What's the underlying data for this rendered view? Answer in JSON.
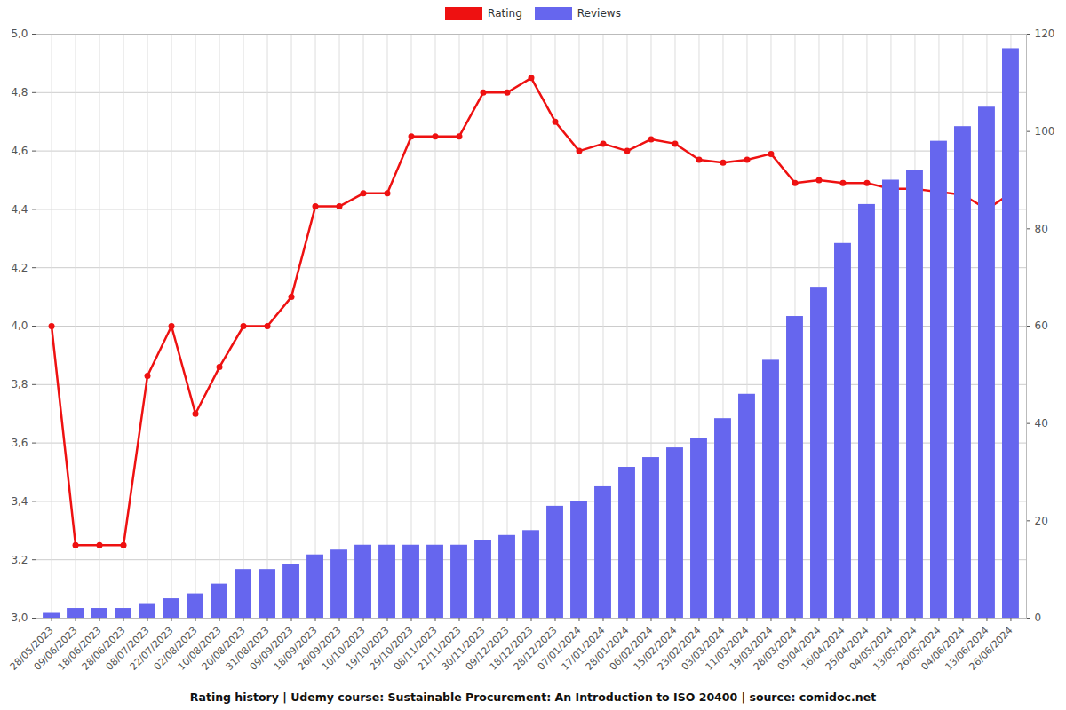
{
  "chart_data": {
    "type": "bar",
    "title": "Rating history | Udemy course: Sustainable Procurement: An Introduction to ISO 20400 | source: comidoc.net",
    "categories": [
      "28/05/2023",
      "09/06/2023",
      "18/06/2023",
      "28/06/2023",
      "08/07/2023",
      "22/07/2023",
      "02/08/2023",
      "10/08/2023",
      "20/08/2023",
      "31/08/2023",
      "09/09/2023",
      "18/09/2023",
      "26/09/2023",
      "10/10/2023",
      "19/10/2023",
      "29/10/2023",
      "08/11/2023",
      "21/11/2023",
      "30/11/2023",
      "09/12/2023",
      "18/12/2023",
      "28/12/2023",
      "07/01/2024",
      "17/01/2024",
      "28/01/2024",
      "06/02/2024",
      "15/02/2024",
      "23/02/2024",
      "03/03/2024",
      "11/03/2024",
      "19/03/2024",
      "28/03/2024",
      "05/04/2024",
      "16/04/2024",
      "25/04/2024",
      "04/05/2024",
      "13/05/2024",
      "26/05/2024",
      "04/06/2024",
      "13/06/2024",
      "26/06/2024"
    ],
    "series": [
      {
        "name": "Rating",
        "type": "line",
        "color": "#ee1111",
        "marker": "circle",
        "values": [
          4.0,
          3.25,
          3.25,
          3.25,
          3.83,
          4.0,
          3.7,
          3.86,
          4.0,
          4.0,
          4.1,
          4.41,
          4.41,
          4.455,
          4.455,
          4.65,
          4.65,
          4.65,
          4.8,
          4.8,
          4.85,
          4.7,
          4.6,
          4.625,
          4.6,
          4.64,
          4.625,
          4.57,
          4.56,
          4.57,
          4.59,
          4.49,
          4.5,
          4.49,
          4.49,
          4.47,
          4.47,
          4.46,
          4.45,
          4.4,
          4.455
        ]
      },
      {
        "name": "Reviews",
        "type": "bar",
        "color": "#6666ee",
        "axis": "y2",
        "values": [
          1,
          2,
          2,
          2,
          3,
          4,
          5,
          7,
          10,
          10,
          11,
          13,
          14,
          15,
          15,
          15,
          15,
          15,
          16,
          17,
          18,
          23,
          24,
          27,
          31,
          33,
          35,
          37,
          41,
          46,
          53,
          62,
          68,
          77,
          85,
          90,
          92,
          98,
          101,
          105,
          117
        ]
      }
    ],
    "ylim": [
      3.0,
      5.0
    ],
    "yticks": [
      {
        "value": 3.0,
        "label": "3,0"
      },
      {
        "value": 3.2,
        "label": "3,2"
      },
      {
        "value": 3.4,
        "label": "3,4"
      },
      {
        "value": 3.6,
        "label": "3,6"
      },
      {
        "value": 3.8,
        "label": "3,8"
      },
      {
        "value": 4.0,
        "label": "4,0"
      },
      {
        "value": 4.2,
        "label": "4,2"
      },
      {
        "value": 4.4,
        "label": "4,4"
      },
      {
        "value": 4.6,
        "label": "4,6"
      },
      {
        "value": 4.8,
        "label": "4,8"
      },
      {
        "value": 5.0,
        "label": "5,0"
      }
    ],
    "y2lim": [
      0,
      120
    ],
    "y2ticks": [
      0,
      20,
      40,
      60,
      80,
      100,
      120
    ],
    "grid": true,
    "legend": "top"
  }
}
